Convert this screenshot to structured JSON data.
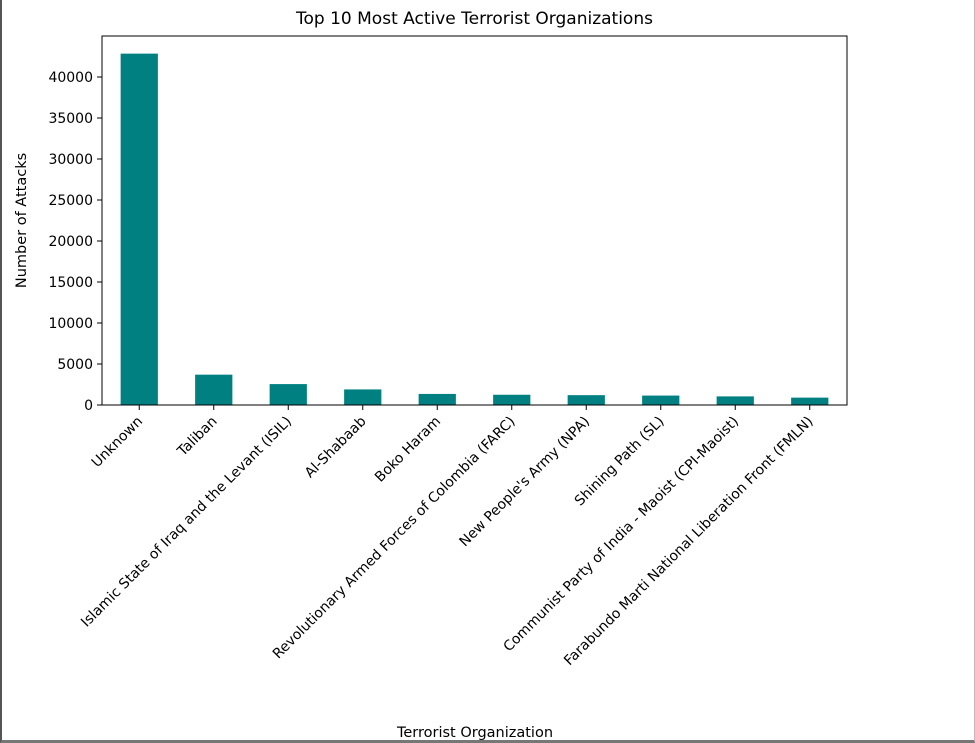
{
  "chart_data": {
    "type": "bar",
    "title": "Top 10 Most Active Terrorist Organizations",
    "xlabel": "Terrorist Organization",
    "ylabel": "Number of Attacks",
    "categories": [
      "Unknown",
      "Taliban",
      "Islamic State of Iraq and the Levant (ISIL)",
      "Al-Shabaab",
      "Boko Haram",
      "Revolutionary Armed Forces of Colombia (FARC)",
      "New People's Army (NPA)",
      "Shining Path (SL)",
      "Communist Party of India - Maoist (CPI-Maoist)",
      "Farabundo Marti National Liberation Front (FMLN)"
    ],
    "values": [
      42850,
      3700,
      2550,
      1900,
      1350,
      1250,
      1200,
      1150,
      1050,
      900
    ],
    "ylim": [
      0,
      45000
    ],
    "yticks": [
      0,
      5000,
      10000,
      15000,
      20000,
      25000,
      30000,
      35000,
      40000
    ],
    "ytick_labels": [
      "0",
      "5000",
      "10000",
      "15000",
      "20000",
      "25000",
      "30000",
      "35000",
      "40000"
    ],
    "grid": false,
    "legend": "none",
    "bar_color": "#008080"
  }
}
